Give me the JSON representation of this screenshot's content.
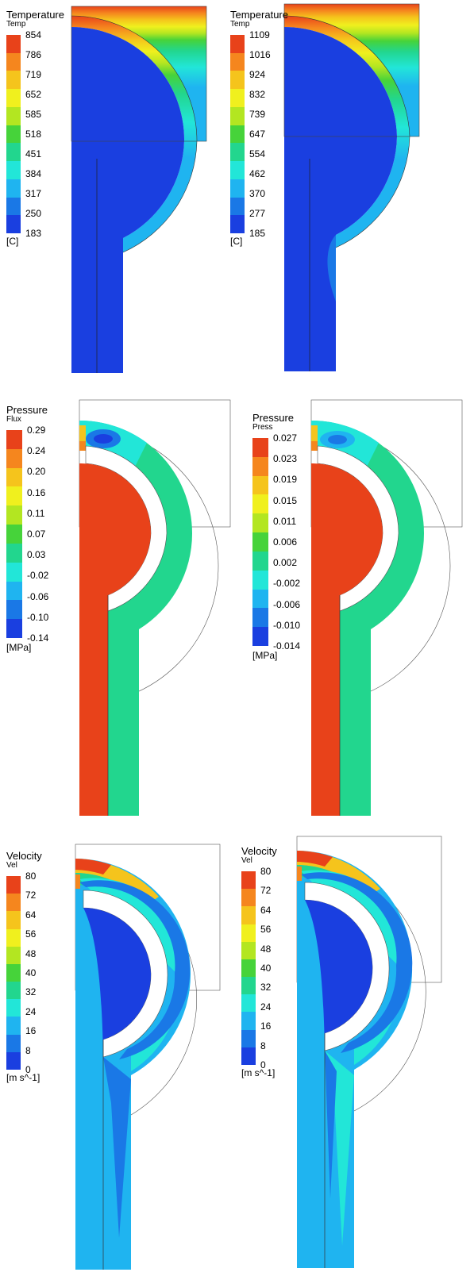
{
  "panels": [
    {
      "id": "temp-a",
      "field": "temperature",
      "legend": {
        "title": "Temperature",
        "subtitle": "Temp",
        "ticks": [
          "854",
          "786",
          "719",
          "652",
          "585",
          "518",
          "451",
          "384",
          "317",
          "250",
          "183"
        ],
        "unit": "[C]"
      }
    },
    {
      "id": "temp-b",
      "field": "temperature",
      "legend": {
        "title": "Temperature",
        "subtitle": "Temp",
        "ticks": [
          "1109",
          "1016",
          "924",
          "832",
          "739",
          "647",
          "554",
          "462",
          "370",
          "277",
          "185"
        ],
        "unit": "[C]"
      }
    },
    {
      "id": "pres-a",
      "field": "pressure",
      "legend": {
        "title": "Pressure",
        "subtitle": "Flux",
        "ticks": [
          "0.29",
          "0.24",
          "0.20",
          "0.16",
          "0.11",
          "0.07",
          "0.03",
          "-0.02",
          "-0.06",
          "-0.10",
          "-0.14"
        ],
        "unit": "[MPa]"
      }
    },
    {
      "id": "pres-b",
      "field": "pressure",
      "legend": {
        "title": "Pressure",
        "subtitle": "Press",
        "ticks": [
          "0.027",
          "0.023",
          "0.019",
          "0.015",
          "0.011",
          "0.006",
          "0.002",
          "-0.002",
          "-0.006",
          "-0.010",
          "-0.014"
        ],
        "unit": "[MPa]"
      }
    },
    {
      "id": "vel-a",
      "field": "velocity",
      "legend": {
        "title": "Velocity",
        "subtitle": "Vel",
        "ticks": [
          "80",
          "72",
          "64",
          "56",
          "48",
          "40",
          "32",
          "24",
          "16",
          "8",
          "0"
        ],
        "unit": "[m s^-1]"
      }
    },
    {
      "id": "vel-b",
      "field": "velocity",
      "legend": {
        "title": "Velocity",
        "subtitle": "Vel",
        "ticks": [
          "80",
          "72",
          "64",
          "56",
          "48",
          "40",
          "32",
          "24",
          "16",
          "8",
          "0"
        ],
        "unit": "[m s^-1]"
      }
    }
  ],
  "colormap": [
    "#e8421a",
    "#f5861e",
    "#f5c41c",
    "#f0f01e",
    "#b3e621",
    "#46d33a",
    "#22d68e",
    "#22e6d8",
    "#1fb4f0",
    "#1a78e6",
    "#1a3fe0"
  ]
}
